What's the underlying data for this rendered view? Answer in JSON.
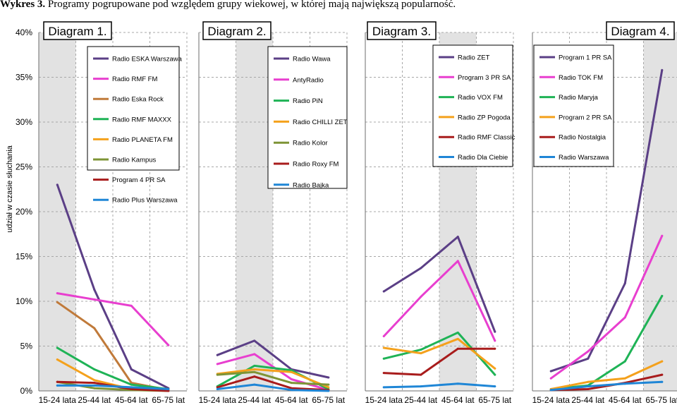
{
  "figure_title": {
    "prefix": "Wykres 3.",
    "text": " Programy pogrupowane pod względem grupy wiekowej, w której mają największą popularność."
  },
  "chart_data": {
    "type": "line",
    "ylabel": "udział w czasie słuchania",
    "yticks": [
      "0%",
      "5%",
      "10%",
      "15%",
      "20%",
      "25%",
      "30%",
      "35%",
      "40%"
    ],
    "ylim": [
      0,
      40
    ],
    "categories": [
      "15-24 lata",
      "25-44 lat",
      "45-64 lat",
      "65-75 lat"
    ],
    "panels": [
      {
        "title": "Diagram 1.",
        "highlight_index": 0,
        "series": [
          {
            "name": "Radio ESKA Warszawa",
            "color": "#5b3f86",
            "values": [
              23.0,
              11.3,
              2.4,
              0.3
            ]
          },
          {
            "name": "Radio RMF FM",
            "color": "#e83fcf",
            "values": [
              10.9,
              10.2,
              9.5,
              5.1
            ]
          },
          {
            "name": "Radio Eska Rock",
            "color": "#c07a3a",
            "values": [
              9.9,
              7.0,
              0.9,
              0.1
            ]
          },
          {
            "name": "Radio RMF MAXXX",
            "color": "#1fb356",
            "values": [
              4.8,
              2.4,
              0.7,
              0.2
            ]
          },
          {
            "name": "Radio PLANETA FM",
            "color": "#f4a11c",
            "values": [
              3.5,
              1.2,
              0.2,
              0.1
            ]
          },
          {
            "name": "Radio Kampus",
            "color": "#7e9436",
            "values": [
              1.0,
              0.3,
              0.1,
              0.0
            ]
          },
          {
            "name": "Program 4 PR SA",
            "color": "#a81c1c",
            "values": [
              1.0,
              0.9,
              0.2,
              0.0
            ]
          },
          {
            "name": "Radio Plus Warszawa",
            "color": "#1f86d6",
            "values": [
              0.6,
              0.6,
              0.4,
              0.2
            ]
          }
        ]
      },
      {
        "title": "Diagram 2.",
        "highlight_index": 1,
        "series": [
          {
            "name": "Radio Wawa",
            "color": "#5b3f86",
            "values": [
              4.0,
              5.6,
              2.4,
              1.5
            ]
          },
          {
            "name": "AntyRadio",
            "color": "#e83fcf",
            "values": [
              3.0,
              4.1,
              1.3,
              0.1
            ]
          },
          {
            "name": "Radio PiN",
            "color": "#1fb356",
            "values": [
              0.5,
              2.8,
              2.3,
              0.2
            ]
          },
          {
            "name": "Radio CHILLI ZET",
            "color": "#f4a11c",
            "values": [
              1.9,
              2.4,
              2.1,
              0.4
            ]
          },
          {
            "name": "Radio Kolor",
            "color": "#7e9436",
            "values": [
              1.8,
              2.1,
              0.9,
              0.7
            ]
          },
          {
            "name": "Radio Roxy FM",
            "color": "#a81c1c",
            "values": [
              0.4,
              1.6,
              0.3,
              0.1
            ]
          },
          {
            "name": "Radio Bajka",
            "color": "#1f86d6",
            "values": [
              0.2,
              0.7,
              0.1,
              0.0
            ]
          }
        ]
      },
      {
        "title": "Diagram 3.",
        "highlight_index": 2,
        "series": [
          {
            "name": "Radio ZET",
            "color": "#5b3f86",
            "values": [
              11.1,
              13.7,
              17.2,
              6.6
            ]
          },
          {
            "name": "Program 3 PR SA",
            "color": "#e83fcf",
            "values": [
              6.1,
              10.5,
              14.5,
              5.6
            ]
          },
          {
            "name": "Radio VOX FM",
            "color": "#1fb356",
            "values": [
              3.6,
              4.6,
              6.5,
              1.8
            ]
          },
          {
            "name": "Radio ZP Pogoda",
            "color": "#f4a11c",
            "values": [
              4.8,
              4.2,
              5.8,
              2.5
            ]
          },
          {
            "name": "Radio RMF Classic",
            "color": "#a81c1c",
            "values": [
              2.0,
              1.8,
              4.7,
              4.7
            ]
          },
          {
            "name": "Radio Dla Ciebie",
            "color": "#1f86d6",
            "values": [
              0.4,
              0.5,
              0.8,
              0.5
            ]
          }
        ]
      },
      {
        "title": "Diagram 4.",
        "highlight_index": 3,
        "series": [
          {
            "name": "Program 1 PR SA",
            "color": "#5b3f86",
            "values": [
              2.2,
              3.6,
              12.0,
              35.8
            ]
          },
          {
            "name": "Radio TOK FM",
            "color": "#e83fcf",
            "values": [
              1.4,
              4.4,
              8.2,
              17.3
            ]
          },
          {
            "name": "Radio Maryja",
            "color": "#1fb356",
            "values": [
              0.2,
              0.6,
              3.3,
              10.6
            ]
          },
          {
            "name": "Program 2 PR SA",
            "color": "#f4a11c",
            "values": [
              0.2,
              1.0,
              1.4,
              3.3
            ]
          },
          {
            "name": "Radio Nostalgia",
            "color": "#a81c1c",
            "values": [
              0.1,
              0.2,
              0.9,
              1.8
            ]
          },
          {
            "name": "Radio Warszawa",
            "color": "#1f86d6",
            "values": [
              0.1,
              0.5,
              0.8,
              1.0
            ]
          }
        ]
      }
    ]
  }
}
